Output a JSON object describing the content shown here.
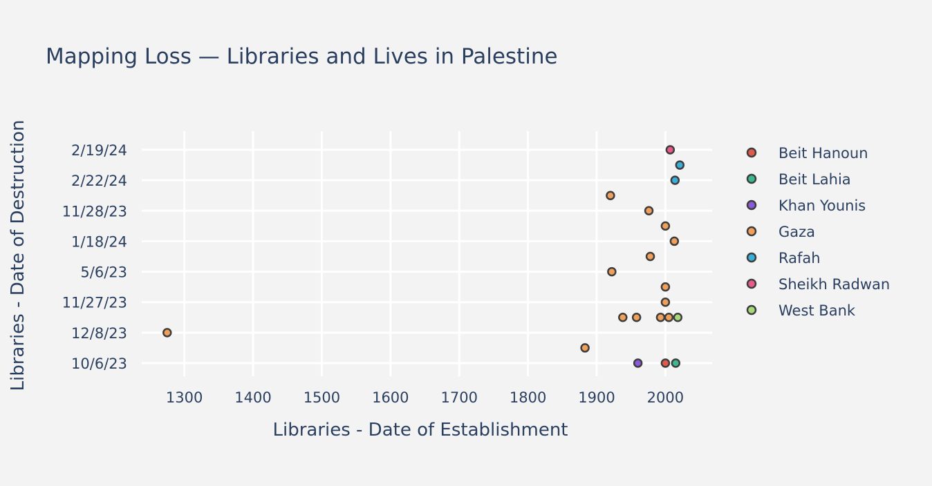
{
  "chart_data": {
    "type": "scatter",
    "title": "Mapping Loss — Libraries and Lives in Palestine",
    "xlabel": "Libraries - Date of Establishment",
    "ylabel": "Libraries - Date of Destruction",
    "xlim": [
      1238,
      2068
    ],
    "x_ticks": [
      1300,
      1400,
      1500,
      1600,
      1700,
      1800,
      1900,
      2000
    ],
    "y_categories": [
      "10/6/23",
      "",
      "12/8/23",
      "",
      "11/27/23",
      "",
      "5/6/23",
      "",
      "1/18/24",
      "",
      "11/28/23",
      "",
      "2/22/24",
      "",
      "2/19/24"
    ],
    "grid": true,
    "legend_position": "right",
    "series": [
      {
        "name": "Beit Hanoun",
        "color": "#e05a4c",
        "points": [
          {
            "x": 2000,
            "y": 0
          }
        ]
      },
      {
        "name": "Beit Lahia",
        "color": "#3db88e",
        "points": [
          {
            "x": 2015,
            "y": 0
          }
        ]
      },
      {
        "name": "Khan Younis",
        "color": "#8a5ad8",
        "points": [
          {
            "x": 1960,
            "y": 0
          }
        ]
      },
      {
        "name": "Gaza",
        "color": "#f0a05a",
        "points": [
          {
            "x": 1883,
            "y": 1
          },
          {
            "x": 1275,
            "y": 2
          },
          {
            "x": 1938,
            "y": 3
          },
          {
            "x": 1958,
            "y": 3
          },
          {
            "x": 1993,
            "y": 3
          },
          {
            "x": 2005,
            "y": 3
          },
          {
            "x": 2000,
            "y": 4
          },
          {
            "x": 2000,
            "y": 5
          },
          {
            "x": 1922,
            "y": 6
          },
          {
            "x": 1978,
            "y": 7
          },
          {
            "x": 2013,
            "y": 8
          },
          {
            "x": 2000,
            "y": 9
          },
          {
            "x": 1976,
            "y": 10
          },
          {
            "x": 1920,
            "y": 11
          }
        ]
      },
      {
        "name": "Rafah",
        "color": "#3aaed8",
        "points": [
          {
            "x": 2014,
            "y": 12
          },
          {
            "x": 2021,
            "y": 13
          }
        ]
      },
      {
        "name": "Sheikh Radwan",
        "color": "#e85a8a",
        "points": [
          {
            "x": 2007,
            "y": 14
          }
        ]
      },
      {
        "name": "West Bank",
        "color": "#a8d87a",
        "points": [
          {
            "x": 2018,
            "y": 3
          }
        ]
      }
    ]
  }
}
